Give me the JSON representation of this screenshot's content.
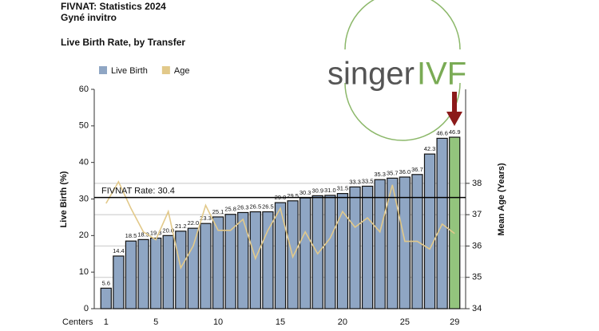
{
  "header": {
    "title": "FIVNAT: Statistics 2024",
    "subtitle": "Gyné invitro"
  },
  "logo": {
    "part1": "singer",
    "part2": "IVF"
  },
  "chart_data": {
    "type": "bar",
    "title": "Live Birth Rate, by Transfer",
    "x_label": "Centers",
    "y_label": "Live Birth (%)",
    "y2_label": "Mean Age (Years)",
    "categories": [
      1,
      null,
      null,
      null,
      5,
      null,
      null,
      null,
      null,
      10,
      null,
      null,
      null,
      null,
      15,
      null,
      null,
      null,
      null,
      20,
      null,
      null,
      null,
      null,
      25,
      null,
      null,
      null,
      29
    ],
    "series": [
      {
        "name": "Live Birth",
        "color": "#8fa6c4",
        "colors": [
          "#8fa6c4",
          "#8fa6c4",
          "#8fa6c4",
          "#8fa6c4",
          "#8fa6c4",
          "#8fa6c4",
          "#8fa6c4",
          "#8fa6c4",
          "#8fa6c4",
          "#8fa6c4",
          "#8fa6c4",
          "#8fa6c4",
          "#8fa6c4",
          "#8fa6c4",
          "#8fa6c4",
          "#8fa6c4",
          "#8fa6c4",
          "#8fa6c4",
          "#8fa6c4",
          "#8fa6c4",
          "#8fa6c4",
          "#8fa6c4",
          "#8fa6c4",
          "#8fa6c4",
          "#8fa6c4",
          "#8fa6c4",
          "#8fa6c4",
          "#8fa6c4",
          "#93c47d"
        ],
        "values": [
          5.6,
          14.4,
          18.5,
          18.9,
          19.3,
          20.0,
          21.2,
          22.0,
          23.3,
          25.1,
          25.8,
          26.3,
          26.5,
          26.5,
          29.0,
          29.5,
          30.3,
          30.9,
          31.0,
          31.5,
          33.3,
          33.5,
          35.3,
          35.7,
          36.0,
          36.7,
          42.3,
          46.6,
          46.9
        ],
        "value_labels": [
          "5.6",
          "14.4",
          "18.5",
          "18.9",
          "19.3",
          "20.0",
          "21.2",
          "22.0",
          "23.3",
          "25.1",
          "25.8",
          "26.3",
          "26.5",
          "26.5",
          "29.0",
          "29.5",
          "30.3",
          "30.9",
          "31.0",
          "31.5",
          "33.3",
          "33.5",
          "35.3",
          "35.7",
          "36.0",
          "36.7",
          "42.3",
          "46.6",
          "46.9"
        ]
      },
      {
        "name": "Age",
        "color": "#e2c98a",
        "axis": "y2",
        "values": [
          37.36,
          38.05,
          37.2,
          36.45,
          36.2,
          37.1,
          35.3,
          36.0,
          37.3,
          36.5,
          36.5,
          36.85,
          35.6,
          36.5,
          37.2,
          35.65,
          36.45,
          35.75,
          36.25,
          37.1,
          36.6,
          36.9,
          36.45,
          37.95,
          36.15,
          36.15,
          35.9,
          36.7,
          36.4
        ]
      }
    ],
    "reference_line": {
      "value": 30.4,
      "label": "FIVNAT Rate: 30.4"
    },
    "ylim": [
      0,
      60
    ],
    "yticks": [
      0,
      10,
      20,
      30,
      40,
      50,
      60
    ],
    "y2lim": [
      34,
      41
    ],
    "y2ticks": [
      34,
      35,
      36,
      37,
      38
    ],
    "grid": true,
    "legend": "top-left"
  }
}
